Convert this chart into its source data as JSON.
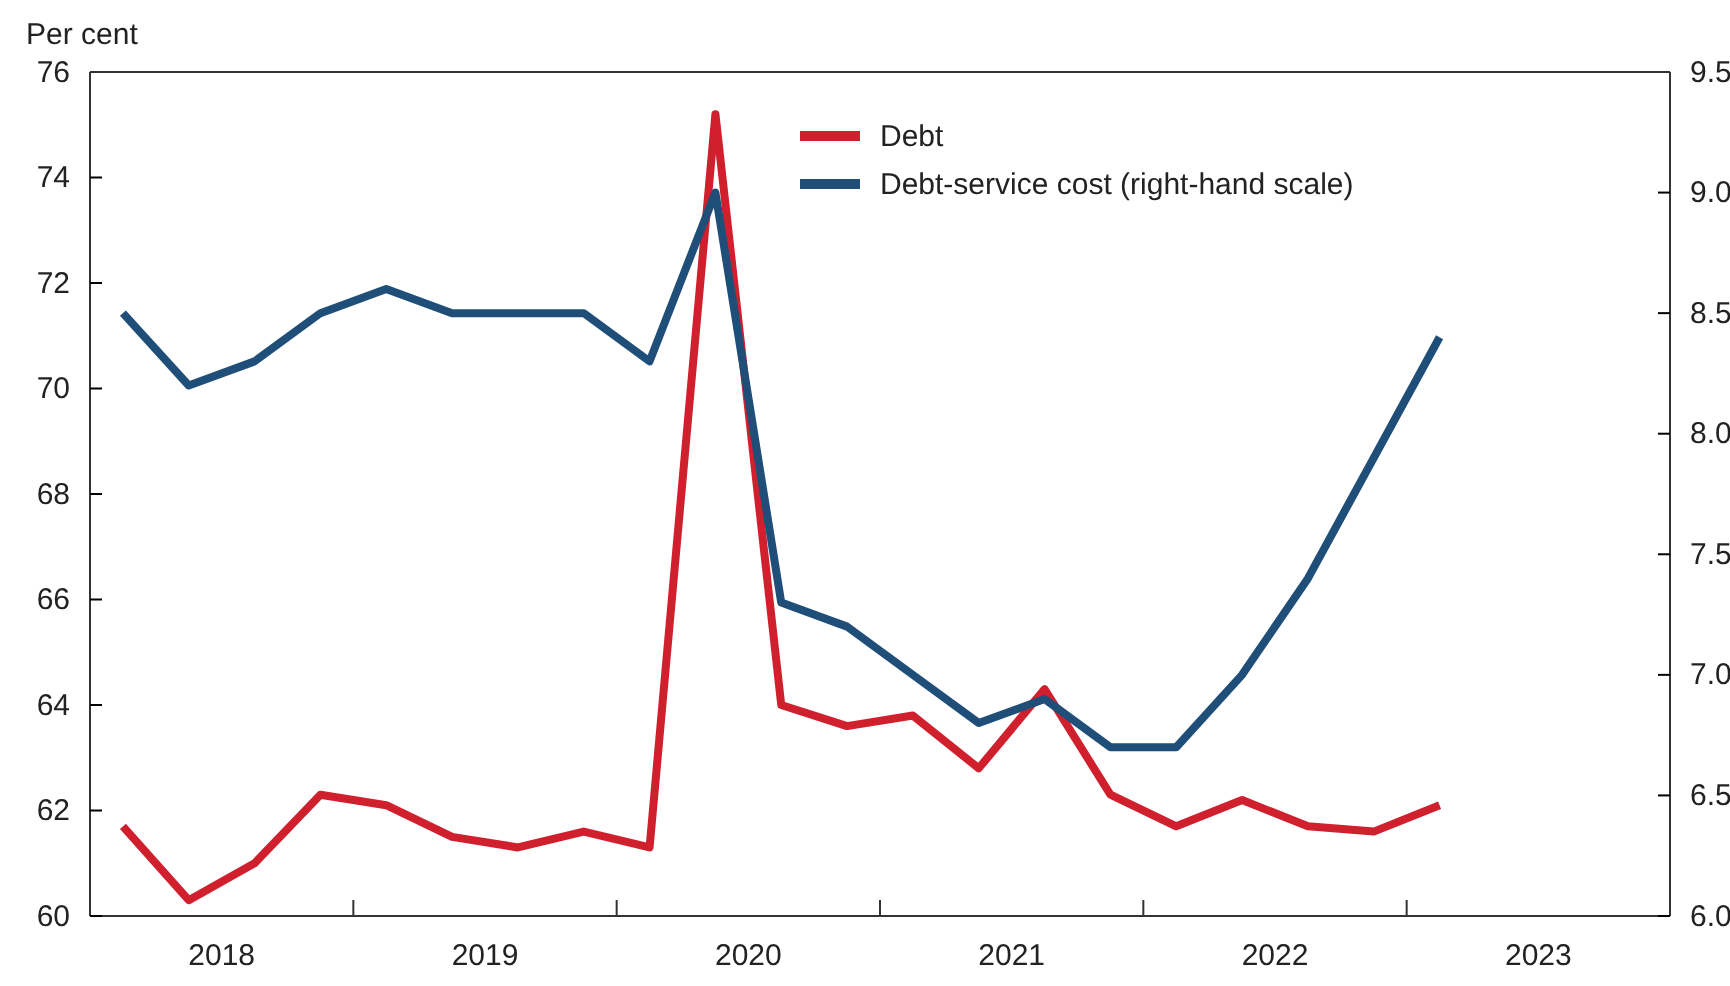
{
  "chart_data": {
    "type": "line",
    "ylabel": "Per cent",
    "x": [
      2018.125,
      2018.375,
      2018.625,
      2018.875,
      2019.125,
      2019.375,
      2019.625,
      2019.875,
      2020.125,
      2020.375,
      2020.625,
      2020.875,
      2021.125,
      2021.375,
      2021.625,
      2021.875,
      2022.125,
      2022.375,
      2022.625,
      2022.875,
      2023.125
    ],
    "series": [
      {
        "name": "Debt",
        "color": "#d0202e",
        "values": [
          61.7,
          60.3,
          61.0,
          62.3,
          62.1,
          61.5,
          61.3,
          61.6,
          61.3,
          75.2,
          64.0,
          63.6,
          63.8,
          62.8,
          64.3,
          62.3,
          61.7,
          62.2,
          61.7,
          61.6,
          62.1
        ]
      },
      {
        "name": "Debt-service cost (right-hand scale)",
        "color": "#1f4e79",
        "axis": "y2",
        "values": [
          8.5,
          8.2,
          8.3,
          8.5,
          8.6,
          8.5,
          8.5,
          8.5,
          8.3,
          9.0,
          7.3,
          7.2,
          7.0,
          6.8,
          6.9,
          6.7,
          6.7,
          7.0,
          7.4,
          7.9,
          8.4
        ]
      }
    ],
    "xlim": [
      2018,
      2024
    ],
    "xticks": [
      {
        "value": 2018.5,
        "label": "2018"
      },
      {
        "value": 2019.5,
        "label": "2019"
      },
      {
        "value": 2020.5,
        "label": "2020"
      },
      {
        "value": 2021.5,
        "label": "2021"
      },
      {
        "value": 2022.5,
        "label": "2022"
      },
      {
        "value": 2023.5,
        "label": "2023"
      },
      {
        "value": 2019,
        "label": null
      },
      {
        "value": 2020,
        "label": null
      },
      {
        "value": 2021,
        "label": null
      },
      {
        "value": 2022,
        "label": null
      },
      {
        "value": 2023,
        "label": null
      }
    ],
    "ylim": [
      60,
      76
    ],
    "yticks": [
      60,
      62,
      64,
      66,
      68,
      70,
      72,
      74,
      76
    ],
    "y2lim": [
      6,
      9.5
    ],
    "y2ticks": [
      {
        "value": 6,
        "label": "6.0"
      },
      {
        "value": 6.5,
        "label": "6.5"
      },
      {
        "value": 7,
        "label": "7.0"
      },
      {
        "value": 7.5,
        "label": "7.5"
      },
      {
        "value": 8,
        "label": "8.0"
      },
      {
        "value": 8.5,
        "label": "8.5"
      },
      {
        "value": 9,
        "label": "9.0"
      },
      {
        "value": 9.5,
        "label": "9.5"
      }
    ],
    "legend": "top right",
    "grid": false,
    "marker": "none",
    "line_style": "solid"
  }
}
